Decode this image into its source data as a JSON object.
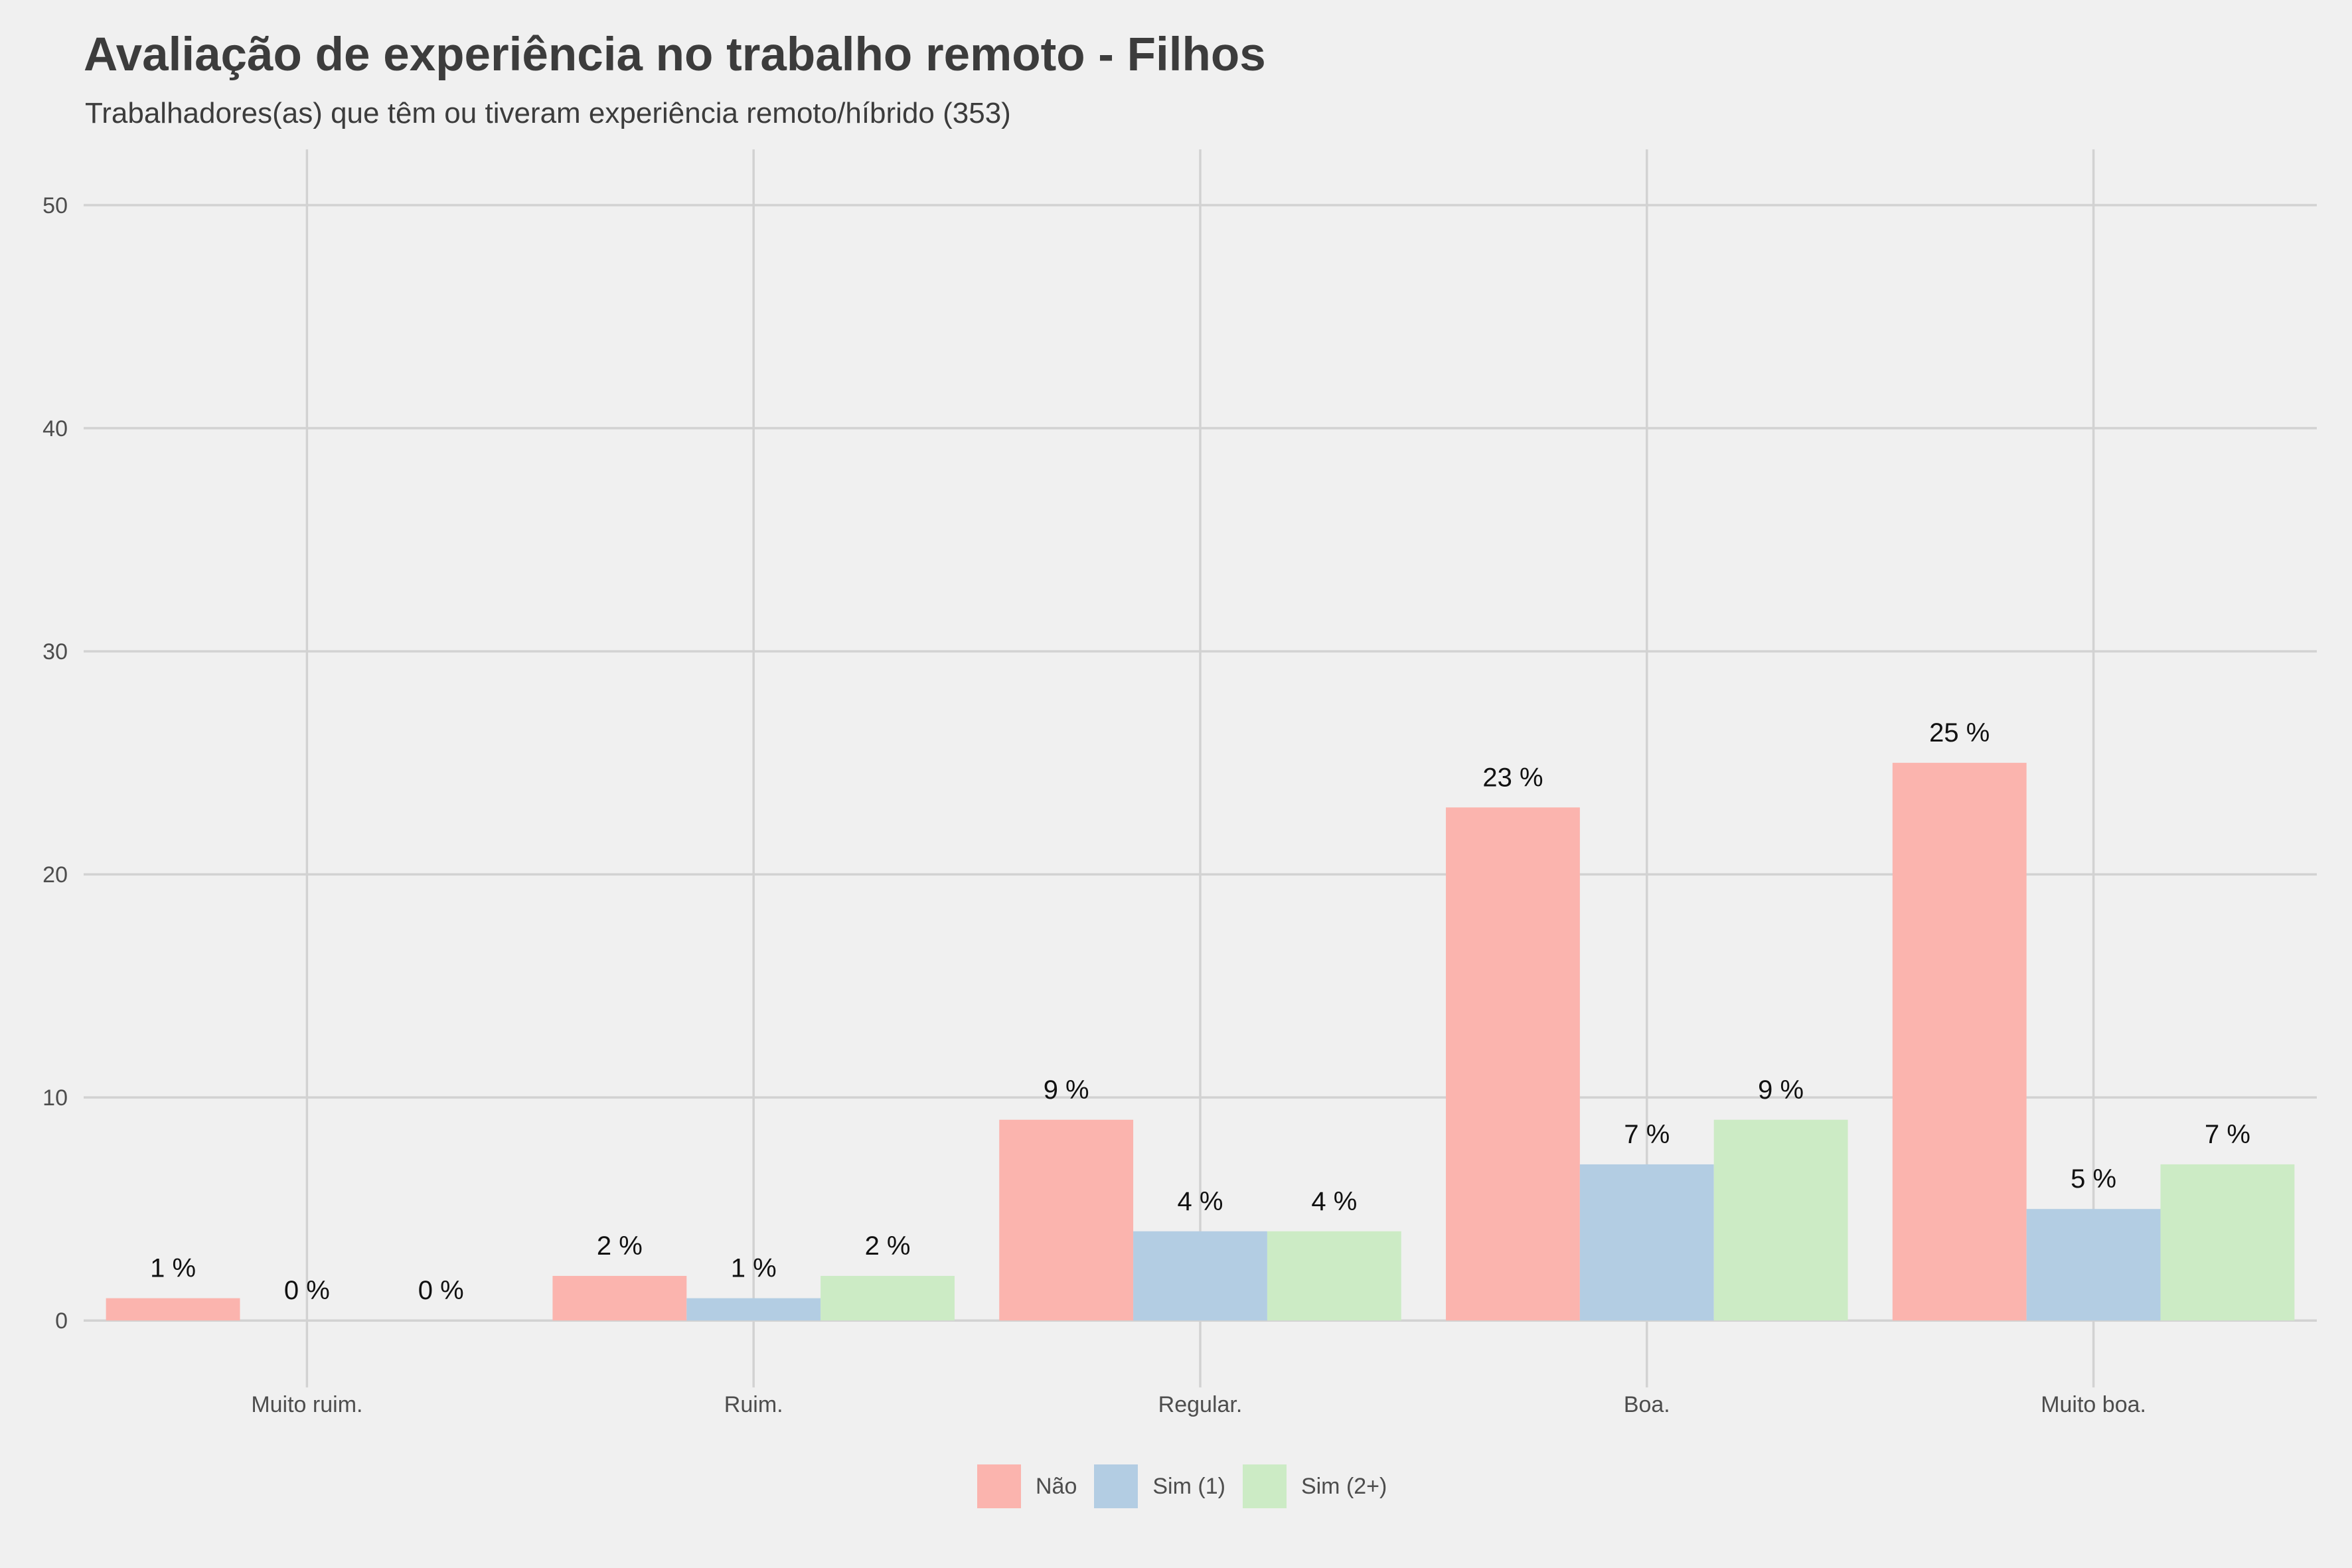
{
  "title": "Avaliação de experiência no trabalho remoto - Filhos",
  "subtitle": "Trabalhadores(as) que têm ou tiveram experiência remoto/híbrido (353)",
  "colors": {
    "background": "#f0f0f0",
    "grid": "#d2d2d2"
  },
  "chart_data": {
    "type": "bar",
    "categories": [
      "Muito ruim.",
      "Ruim.",
      "Regular.",
      "Boa.",
      "Muito boa."
    ],
    "series": [
      {
        "name": "Não",
        "color": "#fbb4ae",
        "values": [
          1,
          2,
          9,
          23,
          25
        ],
        "labels": [
          "1 %",
          "2 %",
          "9 %",
          "23 %",
          "25 %"
        ]
      },
      {
        "name": "Sim (1)",
        "color": "#b3cde3",
        "values": [
          0,
          1,
          4,
          7,
          5
        ],
        "labels": [
          "0 %",
          "1 %",
          "4 %",
          "7 %",
          "5 %"
        ]
      },
      {
        "name": "Sim (2+)",
        "color": "#ccebc5",
        "values": [
          0,
          2,
          4,
          9,
          7
        ],
        "labels": [
          "0 %",
          "2 %",
          "4 %",
          "9 %",
          "7 %"
        ]
      }
    ],
    "yticks": [
      "0",
      "10",
      "20",
      "30",
      "40",
      "50"
    ],
    "ylim": [
      -3,
      52.5
    ],
    "grid": true,
    "legend_position": "bottom"
  }
}
